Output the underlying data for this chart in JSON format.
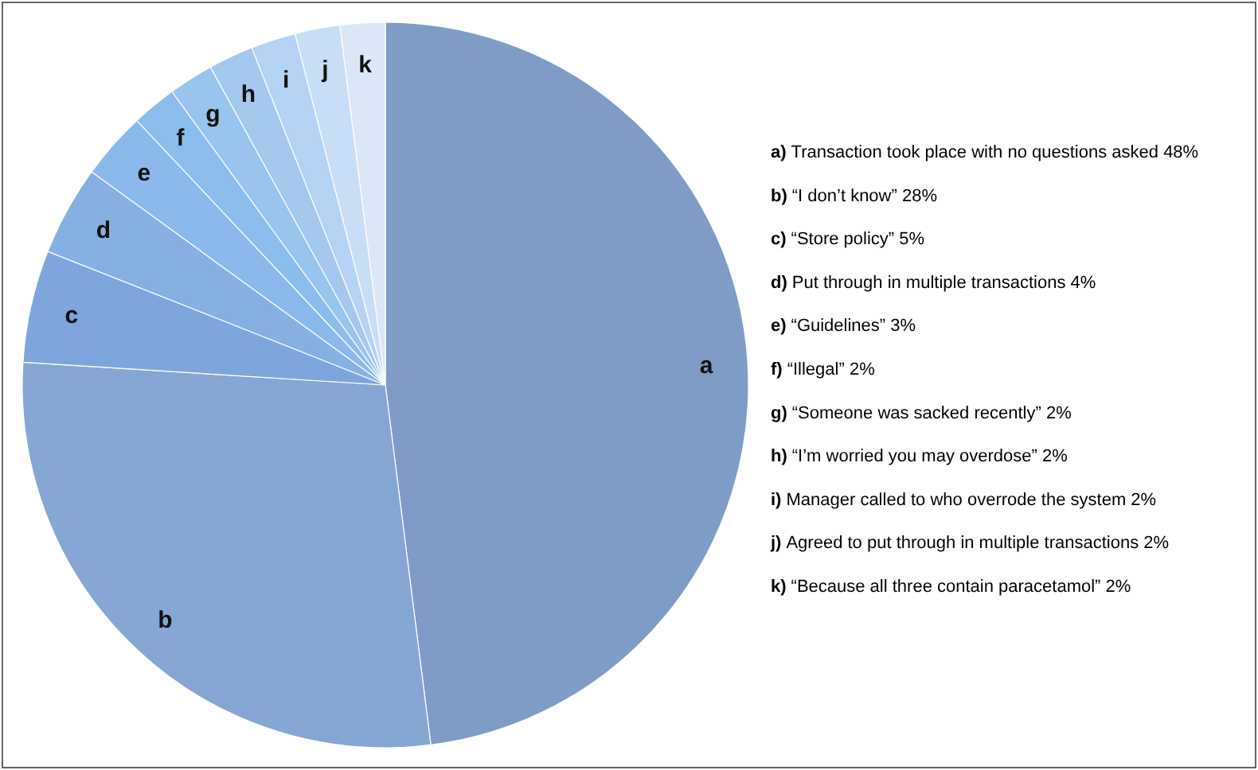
{
  "chart_data": {
    "type": "pie",
    "categories": [
      "a",
      "b",
      "c",
      "d",
      "e",
      "f",
      "g",
      "h",
      "i",
      "j",
      "k"
    ],
    "values": [
      48,
      28,
      5,
      4,
      3,
      2,
      2,
      2,
      2,
      2,
      2
    ],
    "colors": [
      "#7e9cc6",
      "#86a6d4",
      "#7ea6dc",
      "#86b0e2",
      "#8ab8ea",
      "#8cbcec",
      "#98c4ee",
      "#a4c8ee",
      "#b4d2f4",
      "#c8def6",
      "#dce8f8"
    ],
    "annotations": [
      "a) Transaction took place with no questions asked 48%",
      "b) “I don’t know” 28%",
      "c) “Store policy” 5%",
      "d) Put through in multiple transactions 4%",
      "e) “Guidelines” 3%",
      "f) “Illegal” 2%",
      "g) “Someone was sacked recently” 2%",
      "h) “I’m worried you may overdose” 2%",
      "i) Manager called to who overrode the system 2%",
      "j) Agreed to put through in multiple transactions 2%",
      "k) “Because all three contain paracetamol” 2%"
    ]
  }
}
